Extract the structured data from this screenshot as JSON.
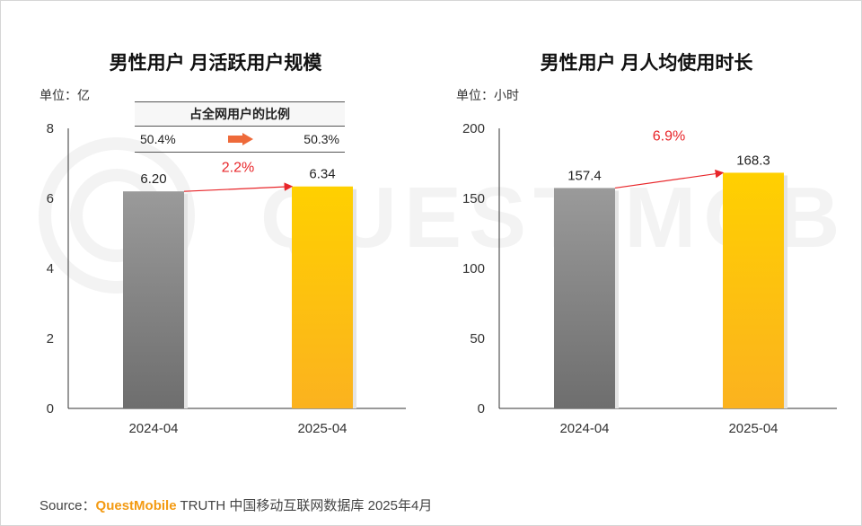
{
  "chart_data": [
    {
      "type": "bar",
      "title": "男性用户 月活跃用户规模",
      "unit_label": "单位：亿",
      "categories": [
        "2024-04",
        "2025-04"
      ],
      "values": [
        6.2,
        6.34
      ],
      "value_labels": [
        "6.20",
        "6.34"
      ],
      "ylim": [
        0,
        8
      ],
      "yticks": [
        "0",
        "2",
        "4",
        "6",
        "8"
      ],
      "growth_label": "2.2%",
      "bar_colors": [
        "#8a8a8a",
        "#ffc20e"
      ],
      "share_table": {
        "header": "占全网用户的比例",
        "from": "50.4%",
        "to": "50.3%"
      }
    },
    {
      "type": "bar",
      "title": "男性用户 月人均使用时长",
      "unit_label": "单位：小时",
      "categories": [
        "2024-04",
        "2025-04"
      ],
      "values": [
        157.4,
        168.3
      ],
      "value_labels": [
        "157.4",
        "168.3"
      ],
      "ylim": [
        0,
        200
      ],
      "yticks": [
        "0",
        "50",
        "100",
        "150",
        "200"
      ],
      "growth_label": "6.9%",
      "bar_colors": [
        "#8a8a8a",
        "#ffc20e"
      ]
    }
  ],
  "source": {
    "prefix": "Source：",
    "brand": "QuestMobile",
    "rest": " TRUTH 中国移动互联网数据库 2025年4月"
  },
  "colors": {
    "accent_red": "#e8262a",
    "arrow_orange": "#ee6a3a"
  }
}
